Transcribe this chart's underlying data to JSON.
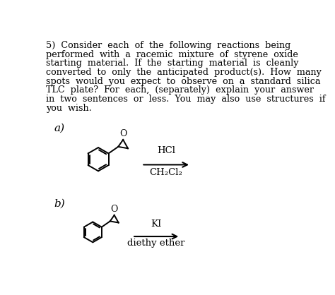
{
  "background_color": "#ffffff",
  "text_color": "#000000",
  "label_a": "a)",
  "label_b": "b)",
  "reagent_a_line1": "HCl",
  "reagent_a_line2": "CH₂Cl₂",
  "reagent_b_line1": "KI",
  "reagent_b_line2": "diethy ether",
  "paragraph_lines": [
    "5)  Consider  each  of  the  following  reactions  being",
    "performed  with  a  racemic  mixture  of  styrene  oxide",
    "starting  material.  If  the  starting  material  is  cleanly",
    "converted  to  only  the  anticipated  product(s).  How  many",
    "spots  would  you  expect  to  observe  on  a  standard  silica",
    "TLC  plate?  For  each,  (separately)  explain  your  answer",
    "in  two  sentences  or  less.  You  may  also  use  structures  if",
    "you  wish."
  ],
  "fig_width": 4.74,
  "fig_height": 4.18,
  "dpi": 100
}
